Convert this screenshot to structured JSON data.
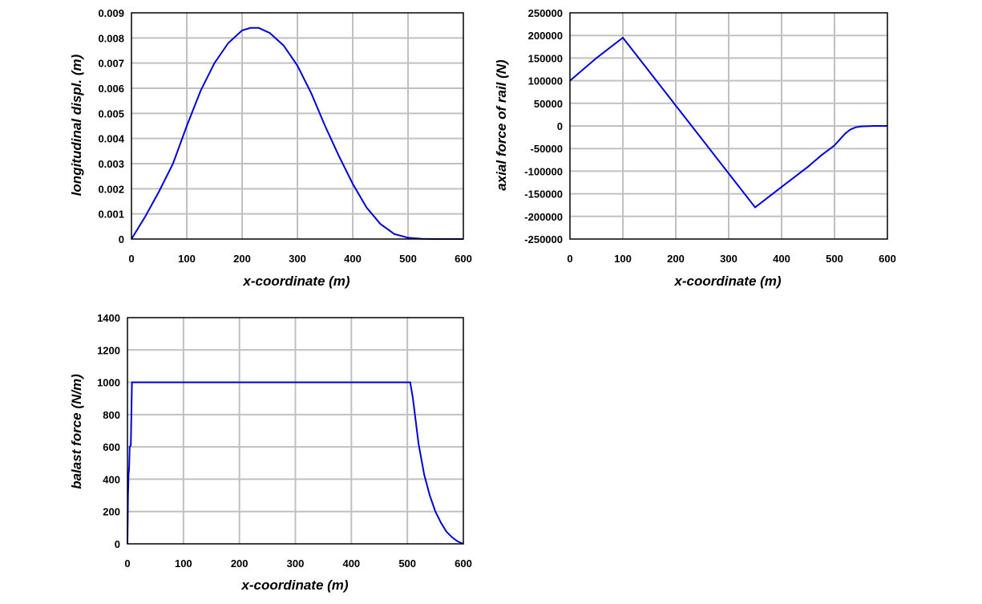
{
  "chart_data": [
    {
      "type": "line",
      "xlabel": "x-coordinate (m)",
      "ylabel": "longitudinal displ. (m)",
      "xlim": [
        0,
        600
      ],
      "ylim": [
        0,
        0.009
      ],
      "xticks": [
        "0",
        "100",
        "200",
        "300",
        "400",
        "500",
        "600"
      ],
      "yticks": [
        "0",
        "0.001",
        "0.002",
        "0.003",
        "0.004",
        "0.005",
        "0.006",
        "0.007",
        "0.008",
        "0.009"
      ],
      "grid": true,
      "color": "#0000dd",
      "series": [
        {
          "x": [
            0,
            25,
            50,
            75,
            100,
            125,
            150,
            175,
            200,
            215,
            230,
            250,
            275,
            300,
            325,
            350,
            375,
            400,
            425,
            450,
            475,
            500,
            525,
            550,
            575,
            600
          ],
          "values": [
            0,
            0.0009,
            0.0019,
            0.003,
            0.0045,
            0.0059,
            0.007,
            0.0078,
            0.0083,
            0.0084,
            0.0084,
            0.0082,
            0.0077,
            0.0069,
            0.0058,
            0.0045,
            0.0033,
            0.0022,
            0.00125,
            0.0006,
            0.0002,
            5e-05,
            1e-05,
            0,
            0,
            0
          ]
        }
      ]
    },
    {
      "type": "line",
      "xlabel": "x-coordinate (m)",
      "ylabel": "axial force of rail (N)",
      "xlim": [
        0,
        600
      ],
      "ylim": [
        -250000,
        250000
      ],
      "xticks": [
        "0",
        "100",
        "200",
        "300",
        "400",
        "500",
        "600"
      ],
      "yticks": [
        "-250000",
        "-200000",
        "-150000",
        "-100000",
        "-50000",
        "0",
        "50000",
        "100000",
        "150000",
        "200000",
        "250000"
      ],
      "grid": true,
      "color": "#0000dd",
      "series": [
        {
          "x": [
            0,
            50,
            100,
            150,
            200,
            250,
            300,
            350,
            400,
            450,
            475,
            500,
            510,
            520,
            530,
            540,
            550,
            575,
            600
          ],
          "values": [
            100000,
            150000,
            195000,
            120000,
            45000,
            -30000,
            -105000,
            -180000,
            -135000,
            -90000,
            -65000,
            -43000,
            -30000,
            -17000,
            -8000,
            -3000,
            -1000,
            0,
            0
          ]
        }
      ]
    },
    {
      "type": "line",
      "xlabel": "x-coordinate (m)",
      "ylabel": "balast force (N/m)",
      "xlim": [
        0,
        600
      ],
      "ylim": [
        0,
        1400
      ],
      "xticks": [
        "0",
        "100",
        "200",
        "300",
        "400",
        "500",
        "600"
      ],
      "yticks": [
        "0",
        "200",
        "400",
        "600",
        "800",
        "1000",
        "1200",
        "1400"
      ],
      "grid": true,
      "color": "#0000dd",
      "series": [
        {
          "x": [
            0,
            1,
            2,
            3,
            4,
            6,
            8,
            100,
            200,
            300,
            400,
            500,
            505,
            510,
            515,
            520,
            530,
            540,
            550,
            560,
            570,
            580,
            590,
            600
          ],
          "values": [
            0,
            300,
            430,
            470,
            600,
            610,
            1000,
            1000,
            1000,
            1000,
            1000,
            1000,
            1000,
            900,
            760,
            620,
            430,
            300,
            200,
            130,
            75,
            40,
            15,
            0
          ]
        }
      ]
    }
  ]
}
